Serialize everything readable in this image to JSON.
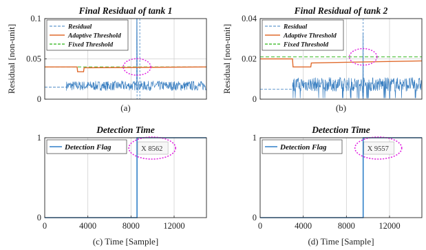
{
  "chart_data": [
    {
      "type": "line",
      "title": "Final Residual of tank 1",
      "ylabel": "Residual [non-unit]",
      "caption": "(a)",
      "xlim": [
        0,
        15000
      ],
      "ylim": [
        0,
        0.1
      ],
      "yticks": [
        "0",
        "0.05",
        "0.1"
      ],
      "legend": [
        "Residual",
        "Adaptive Threshold",
        "Fixed Threshold"
      ],
      "legend_position": "top-left",
      "series": [
        {
          "name": "Residual",
          "x": [
            0,
            2000,
            2001,
            4000,
            6000,
            8000,
            8561,
            8562,
            8700,
            10000,
            12000,
            15000
          ],
          "y": [
            0.015,
            0.015,
            0.016,
            0.015,
            0.016,
            0.016,
            0.017,
            0.1,
            0.02,
            0.017,
            0.016,
            0.016
          ]
        },
        {
          "name": "Adaptive Threshold",
          "x": [
            0,
            3000,
            3050,
            3600,
            3650,
            15000
          ],
          "y": [
            0.04,
            0.04,
            0.034,
            0.034,
            0.039,
            0.04
          ]
        },
        {
          "name": "Fixed Threshold",
          "x": [
            0,
            15000
          ],
          "y": [
            0.04,
            0.04
          ]
        }
      ]
    },
    {
      "type": "line",
      "title": "Final Residual of tank 2",
      "ylabel": "Residual [non-unit]",
      "caption": "(b)",
      "xlim": [
        0,
        15000
      ],
      "ylim": [
        0,
        0.04
      ],
      "yticks": [
        "0",
        "0.02",
        "0.04"
      ],
      "legend": [
        "Residual",
        "Adaptive Threshold",
        "Fixed Threshold"
      ],
      "legend_position": "top-left",
      "series": [
        {
          "name": "Residual",
          "x": [
            0,
            3000,
            3001,
            6000,
            9000,
            9557,
            9600,
            12000,
            15000
          ],
          "y": [
            0.005,
            0.005,
            0.007,
            0.007,
            0.008,
            0.033,
            0.009,
            0.007,
            0.007
          ]
        },
        {
          "name": "Adaptive Threshold",
          "x": [
            0,
            3000,
            3050,
            4700,
            4750,
            15000
          ],
          "y": [
            0.02,
            0.02,
            0.016,
            0.016,
            0.018,
            0.019
          ]
        },
        {
          "name": "Fixed Threshold",
          "x": [
            0,
            15000
          ],
          "y": [
            0.021,
            0.021
          ]
        }
      ]
    },
    {
      "type": "line",
      "title": "Detection Time",
      "xlabel": "(c) Time [Sample]",
      "xlim": [
        0,
        15000
      ],
      "ylim": [
        0,
        1
      ],
      "xticks": [
        0,
        4000,
        8000,
        12000
      ],
      "yticks": [
        "0",
        "1"
      ],
      "legend": [
        "Detection Flag"
      ],
      "legend_position": "top-left",
      "datatip": "X 8562",
      "series": [
        {
          "name": "Detection Flag",
          "x": [
            0,
            8562,
            8562,
            15000
          ],
          "y": [
            0,
            0,
            1,
            1
          ]
        }
      ]
    },
    {
      "type": "line",
      "title": "Detection Time",
      "xlabel": "(d) Time [Sample]",
      "xlim": [
        0,
        15000
      ],
      "ylim": [
        0,
        1
      ],
      "xticks": [
        0,
        4000,
        8000,
        12000
      ],
      "yticks": [
        "0",
        "1"
      ],
      "legend": [
        "Detection Flag"
      ],
      "legend_position": "top-left",
      "datatip": "X 9557",
      "series": [
        {
          "name": "Detection Flag",
          "x": [
            0,
            9557,
            9557,
            15000
          ],
          "y": [
            0,
            0,
            1,
            1
          ]
        }
      ]
    }
  ],
  "colors": {
    "residual": "#3a7fc1",
    "adaptive": "#e06a2c",
    "fixed": "#4cbf3a",
    "flag": "#2f7fc8",
    "highlight": "#e020e0",
    "grid": "#cfcfcf"
  }
}
